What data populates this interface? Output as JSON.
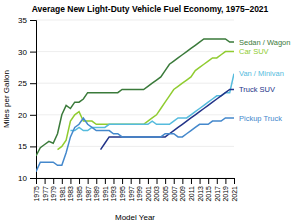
{
  "chart_data": {
    "type": "line",
    "title": "Average New Light-Duty Vehicle Fuel Economy, 1975–2021",
    "x_label": "Model Year",
    "y_label": "Miles per Gallon",
    "xlim": [
      1975,
      2021
    ],
    "ylim": [
      10,
      35
    ],
    "xticks": [
      1975,
      1977,
      1979,
      1981,
      1983,
      1985,
      1987,
      1989,
      1991,
      1993,
      1995,
      1997,
      1999,
      2001,
      2003,
      2005,
      2007,
      2009,
      2011,
      2013,
      2015,
      2017,
      2019,
      2021
    ],
    "yticks": [
      10,
      15,
      20,
      25,
      30,
      35
    ],
    "grid": true,
    "series": [
      {
        "name": "Sedan / Wagon",
        "color": "#3a7a3a",
        "x": [
          1975,
          1976,
          1977,
          1978,
          1979,
          1980,
          1981,
          1982,
          1983,
          1984,
          1985,
          1986,
          1987,
          1988,
          1989,
          1990,
          1991,
          1992,
          1993,
          1994,
          1995,
          1996,
          1997,
          1998,
          1999,
          2000,
          2001,
          2002,
          2003,
          2004,
          2005,
          2006,
          2007,
          2008,
          2009,
          2010,
          2011,
          2012,
          2013,
          2014,
          2015,
          2016,
          2017,
          2018,
          2019,
          2020,
          2021
        ],
        "values": [
          13.5,
          14.8,
          15.3,
          15.8,
          15.5,
          17.0,
          20.0,
          21.5,
          21.0,
          22.0,
          22.0,
          22.5,
          23.5,
          23.5,
          23.5,
          23.5,
          23.5,
          23.5,
          23.5,
          23.5,
          24.0,
          24.0,
          24.0,
          24.0,
          24.0,
          24.0,
          24.5,
          25.0,
          25.5,
          26.0,
          27.0,
          28.0,
          28.5,
          29.0,
          29.5,
          30.0,
          30.5,
          31.0,
          31.5,
          32.0,
          32.0,
          32.0,
          32.0,
          32.0,
          32.0,
          31.5,
          31.5
        ]
      },
      {
        "name": "Car SUV",
        "color": "#90cc30",
        "x": [
          1980,
          1981,
          1982,
          1983,
          1984,
          1985,
          1986,
          1987,
          1988,
          1989,
          1990,
          1991,
          1992,
          1993,
          1994,
          1995,
          1996,
          1997,
          1998,
          1999,
          2000,
          2001,
          2002,
          2003,
          2004,
          2005,
          2006,
          2007,
          2008,
          2009,
          2010,
          2011,
          2012,
          2013,
          2014,
          2015,
          2016,
          2017,
          2018,
          2019,
          2020,
          2021
        ],
        "values": [
          14.5,
          15.0,
          16.0,
          19.0,
          20.0,
          20.5,
          19.0,
          19.0,
          19.0,
          18.5,
          18.5,
          18.5,
          18.5,
          18.5,
          18.5,
          18.5,
          18.5,
          18.5,
          18.5,
          18.5,
          18.5,
          19.0,
          19.5,
          20.0,
          21.0,
          22.0,
          23.0,
          24.0,
          24.5,
          25.0,
          25.5,
          26.0,
          27.0,
          27.5,
          28.0,
          28.5,
          29.0,
          29.0,
          29.5,
          30.0,
          30.0,
          30.0
        ]
      },
      {
        "name": "Van / Minivan",
        "color": "#55bbdd",
        "x": [
          1983,
          1984,
          1985,
          1986,
          1987,
          1988,
          1989,
          1990,
          1991,
          1992,
          1993,
          1994,
          1995,
          1996,
          1997,
          1998,
          1999,
          2000,
          2001,
          2002,
          2003,
          2004,
          2005,
          2006,
          2007,
          2008,
          2009,
          2010,
          2011,
          2012,
          2013,
          2014,
          2015,
          2016,
          2017,
          2018,
          2019,
          2020,
          2021
        ],
        "values": [
          17.5,
          17.5,
          18.0,
          17.5,
          17.5,
          18.0,
          18.0,
          18.0,
          18.0,
          18.5,
          18.5,
          18.5,
          18.5,
          18.5,
          18.5,
          18.5,
          18.5,
          18.5,
          18.5,
          19.0,
          18.5,
          18.5,
          18.5,
          18.5,
          19.0,
          19.5,
          19.5,
          19.5,
          20.0,
          20.5,
          21.0,
          21.5,
          22.0,
          22.5,
          23.0,
          23.0,
          23.5,
          23.5,
          26.5
        ]
      },
      {
        "name": "Truck SUV",
        "color": "#223388",
        "x": [
          1990,
          1991,
          1992,
          1993,
          1994,
          1995,
          1996,
          1997,
          1998,
          1999,
          2000,
          2001,
          2002,
          2003,
          2004,
          2005,
          2006,
          2007,
          2008,
          2009,
          2010,
          2011,
          2012,
          2013,
          2014,
          2015,
          2016,
          2017,
          2018,
          2019,
          2020,
          2021
        ],
        "values": [
          14.5,
          15.5,
          16.5,
          16.5,
          16.5,
          16.5,
          16.5,
          16.5,
          16.5,
          16.5,
          16.5,
          16.5,
          16.5,
          16.5,
          16.5,
          16.5,
          17.0,
          17.5,
          18.0,
          18.5,
          19.0,
          19.5,
          20.0,
          20.5,
          21.0,
          21.5,
          22.0,
          22.5,
          23.0,
          23.5,
          24.0,
          24.0
        ]
      },
      {
        "name": "Pickup Truck",
        "color": "#4488cc",
        "x": [
          1975,
          1976,
          1977,
          1978,
          1979,
          1980,
          1981,
          1982,
          1983,
          1984,
          1985,
          1986,
          1987,
          1988,
          1989,
          1990,
          1991,
          1992,
          1993,
          1994,
          1995,
          1996,
          1997,
          1998,
          1999,
          2000,
          2001,
          2002,
          2003,
          2004,
          2005,
          2006,
          2007,
          2008,
          2009,
          2010,
          2011,
          2012,
          2013,
          2014,
          2015,
          2016,
          2017,
          2018,
          2019,
          2020,
          2021
        ],
        "values": [
          11.0,
          12.5,
          12.5,
          12.5,
          12.5,
          12.0,
          12.0,
          14.0,
          16.5,
          18.0,
          18.5,
          19.5,
          18.5,
          18.0,
          17.5,
          17.5,
          17.5,
          17.5,
          17.0,
          17.0,
          16.5,
          16.5,
          16.5,
          16.5,
          16.5,
          16.5,
          16.5,
          16.5,
          16.5,
          16.5,
          17.0,
          17.0,
          17.0,
          16.5,
          16.5,
          17.0,
          17.5,
          18.0,
          18.5,
          18.5,
          18.5,
          19.0,
          19.0,
          19.0,
          19.5,
          19.5,
          19.5
        ]
      }
    ]
  }
}
